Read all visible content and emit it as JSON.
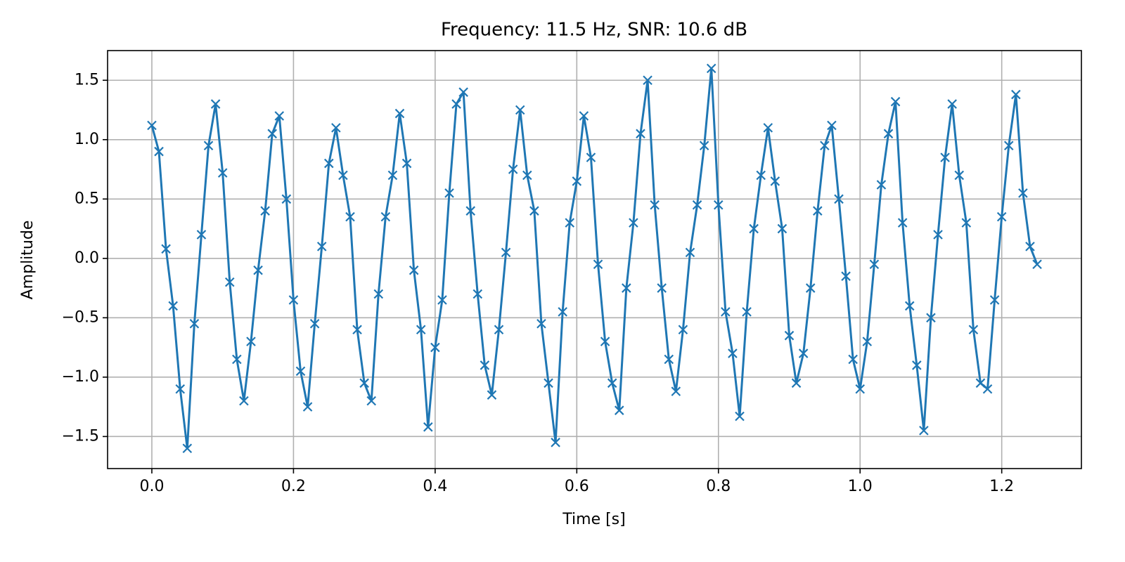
{
  "chart_data": {
    "type": "line",
    "marker": "x",
    "title": "Frequency: 11.5 Hz, SNR: 10.6 dB",
    "x_label": "Time [s]",
    "y_label": "Amplitude",
    "color": "#1f77b4",
    "grid": true,
    "xlim": [
      -0.0625,
      1.3125
    ],
    "ylim": [
      -1.77,
      1.75
    ],
    "xticks": [
      {
        "value": 0,
        "label": "0.0"
      },
      0.2,
      0.4,
      0.6,
      0.8,
      {
        "value": 1,
        "label": "1.0"
      },
      1.2
    ],
    "yticks": [
      {
        "value": -1.5,
        "label": "−1.5"
      },
      {
        "value": -1,
        "label": "−1.0"
      },
      {
        "value": -0.5,
        "label": "−0.5"
      },
      {
        "value": 0,
        "label": "0.0"
      },
      0.5,
      {
        "value": 1,
        "label": "1.0"
      },
      1.5
    ],
    "x": [
      0,
      0.01,
      0.02,
      0.03,
      0.04,
      0.05,
      0.06,
      0.07,
      0.08,
      0.09,
      0.1,
      0.11,
      0.12,
      0.13,
      0.14,
      0.15,
      0.16,
      0.17,
      0.18,
      0.19,
      0.2,
      0.21,
      0.22,
      0.23,
      0.24,
      0.25,
      0.26,
      0.27,
      0.28,
      0.29,
      0.3,
      0.31,
      0.32,
      0.33,
      0.34,
      0.35,
      0.36,
      0.37,
      0.38,
      0.39,
      0.4,
      0.41,
      0.42,
      0.43,
      0.44,
      0.45,
      0.46,
      0.47,
      0.48,
      0.49,
      0.5,
      0.51,
      0.52,
      0.53,
      0.54,
      0.55,
      0.56,
      0.57,
      0.58,
      0.59,
      0.6,
      0.61,
      0.62,
      0.63,
      0.64,
      0.65,
      0.66,
      0.67,
      0.68,
      0.69,
      0.7,
      0.71,
      0.72,
      0.73,
      0.74,
      0.75,
      0.76,
      0.77,
      0.78,
      0.79,
      0.8,
      0.81,
      0.82,
      0.83,
      0.84,
      0.85,
      0.86,
      0.87,
      0.88,
      0.89,
      0.9,
      0.91,
      0.92,
      0.93,
      0.94,
      0.95,
      0.96,
      0.97,
      0.98,
      0.99,
      1,
      1.01,
      1.02,
      1.03,
      1.04,
      1.05,
      1.06,
      1.07,
      1.08,
      1.09,
      1.1,
      1.11,
      1.12,
      1.13,
      1.14,
      1.15,
      1.16,
      1.17,
      1.18,
      1.19,
      1.2,
      1.21,
      1.22,
      1.23,
      1.24,
      1.25
    ],
    "values": [
      1.12,
      0.9,
      0.08,
      -0.4,
      -1.1,
      -1.6,
      -0.55,
      0.2,
      0.95,
      1.3,
      0.72,
      -0.2,
      -0.85,
      -1.2,
      -0.7,
      -0.1,
      0.4,
      1.05,
      1.2,
      0.5,
      -0.35,
      -0.95,
      -1.25,
      -0.55,
      0.1,
      0.8,
      1.1,
      0.7,
      0.35,
      -0.6,
      -1.05,
      -1.2,
      -0.3,
      0.35,
      0.7,
      1.22,
      0.8,
      -0.1,
      -0.6,
      -1.42,
      -0.75,
      -0.35,
      0.55,
      1.3,
      1.4,
      0.4,
      -0.3,
      -0.9,
      -1.15,
      -0.6,
      0.05,
      0.75,
      1.25,
      0.7,
      0.4,
      -0.55,
      -1.05,
      -1.55,
      -0.45,
      0.3,
      0.65,
      1.2,
      0.85,
      -0.05,
      -0.7,
      -1.05,
      -1.28,
      -0.25,
      0.3,
      1.05,
      1.5,
      0.45,
      -0.25,
      -0.85,
      -1.12,
      -0.6,
      0.05,
      0.45,
      0.95,
      1.6,
      0.45,
      -0.45,
      -0.8,
      -1.33,
      -0.45,
      0.25,
      0.7,
      1.1,
      0.65,
      0.25,
      -0.65,
      -1.05,
      -0.8,
      -0.25,
      0.4,
      0.95,
      1.12,
      0.5,
      -0.15,
      -0.85,
      -1.1,
      -0.7,
      -0.05,
      0.62,
      1.05,
      1.32,
      0.3,
      -0.4,
      -0.9,
      -1.45,
      -0.5,
      0.2,
      0.85,
      1.3,
      0.7,
      0.3,
      -0.6,
      -1.05,
      -1.1,
      -0.35,
      0.35,
      0.95,
      1.38,
      0.55,
      0.1,
      -0.05
    ]
  }
}
